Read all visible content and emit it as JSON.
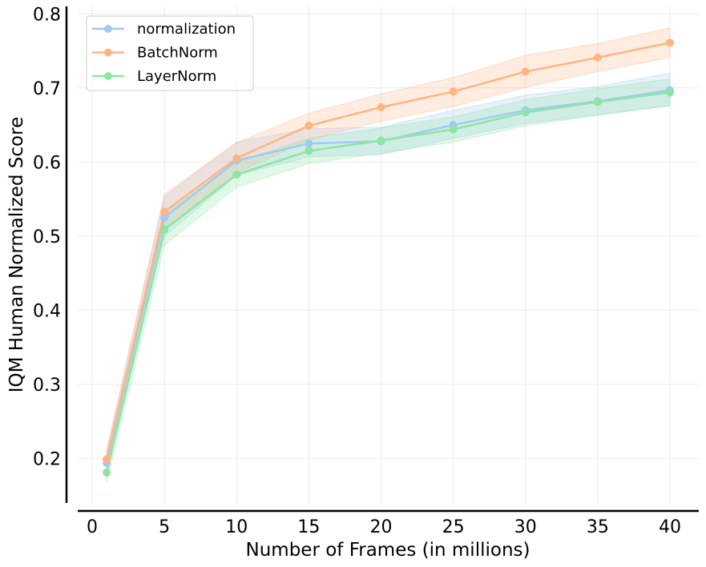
{
  "chart_data": {
    "type": "line",
    "title": "",
    "xlabel": "Number of Frames (in millions)",
    "ylabel": "IQM Human Normalized Score",
    "xlim": [
      -1,
      42
    ],
    "ylim": [
      0.14,
      0.81
    ],
    "xticks": [
      0,
      5,
      10,
      15,
      20,
      25,
      30,
      35,
      40
    ],
    "yticks": [
      0.2,
      0.3,
      0.4,
      0.5,
      0.6,
      0.7,
      0.8
    ],
    "grid": true,
    "legend_position": "top-left",
    "x": [
      1,
      5,
      10,
      15,
      20,
      25,
      30,
      35,
      40
    ],
    "series": [
      {
        "name": "normalization",
        "color": "#a1c9f4",
        "values": [
          0.194,
          0.525,
          0.602,
          0.625,
          0.628,
          0.65,
          0.67,
          0.682,
          0.697
        ],
        "lower": [
          0.18,
          0.5,
          0.582,
          0.607,
          0.61,
          0.632,
          0.652,
          0.664,
          0.676
        ],
        "upper": [
          0.208,
          0.553,
          0.627,
          0.645,
          0.647,
          0.67,
          0.69,
          0.702,
          0.72
        ]
      },
      {
        "name": "BatchNorm",
        "color": "#ffb482",
        "values": [
          0.199,
          0.533,
          0.605,
          0.649,
          0.674,
          0.695,
          0.722,
          0.741,
          0.761
        ],
        "lower": [
          0.185,
          0.51,
          0.585,
          0.63,
          0.655,
          0.675,
          0.701,
          0.722,
          0.741
        ],
        "upper": [
          0.213,
          0.557,
          0.626,
          0.666,
          0.692,
          0.714,
          0.744,
          0.76,
          0.781
        ]
      },
      {
        "name": "LayerNorm",
        "color": "#8de5a1",
        "values": [
          0.181,
          0.509,
          0.583,
          0.615,
          0.629,
          0.644,
          0.667,
          0.681,
          0.694
        ],
        "lower": [
          0.168,
          0.488,
          0.566,
          0.598,
          0.612,
          0.627,
          0.649,
          0.663,
          0.676
        ],
        "upper": [
          0.194,
          0.53,
          0.6,
          0.632,
          0.646,
          0.661,
          0.684,
          0.699,
          0.712
        ]
      }
    ]
  }
}
